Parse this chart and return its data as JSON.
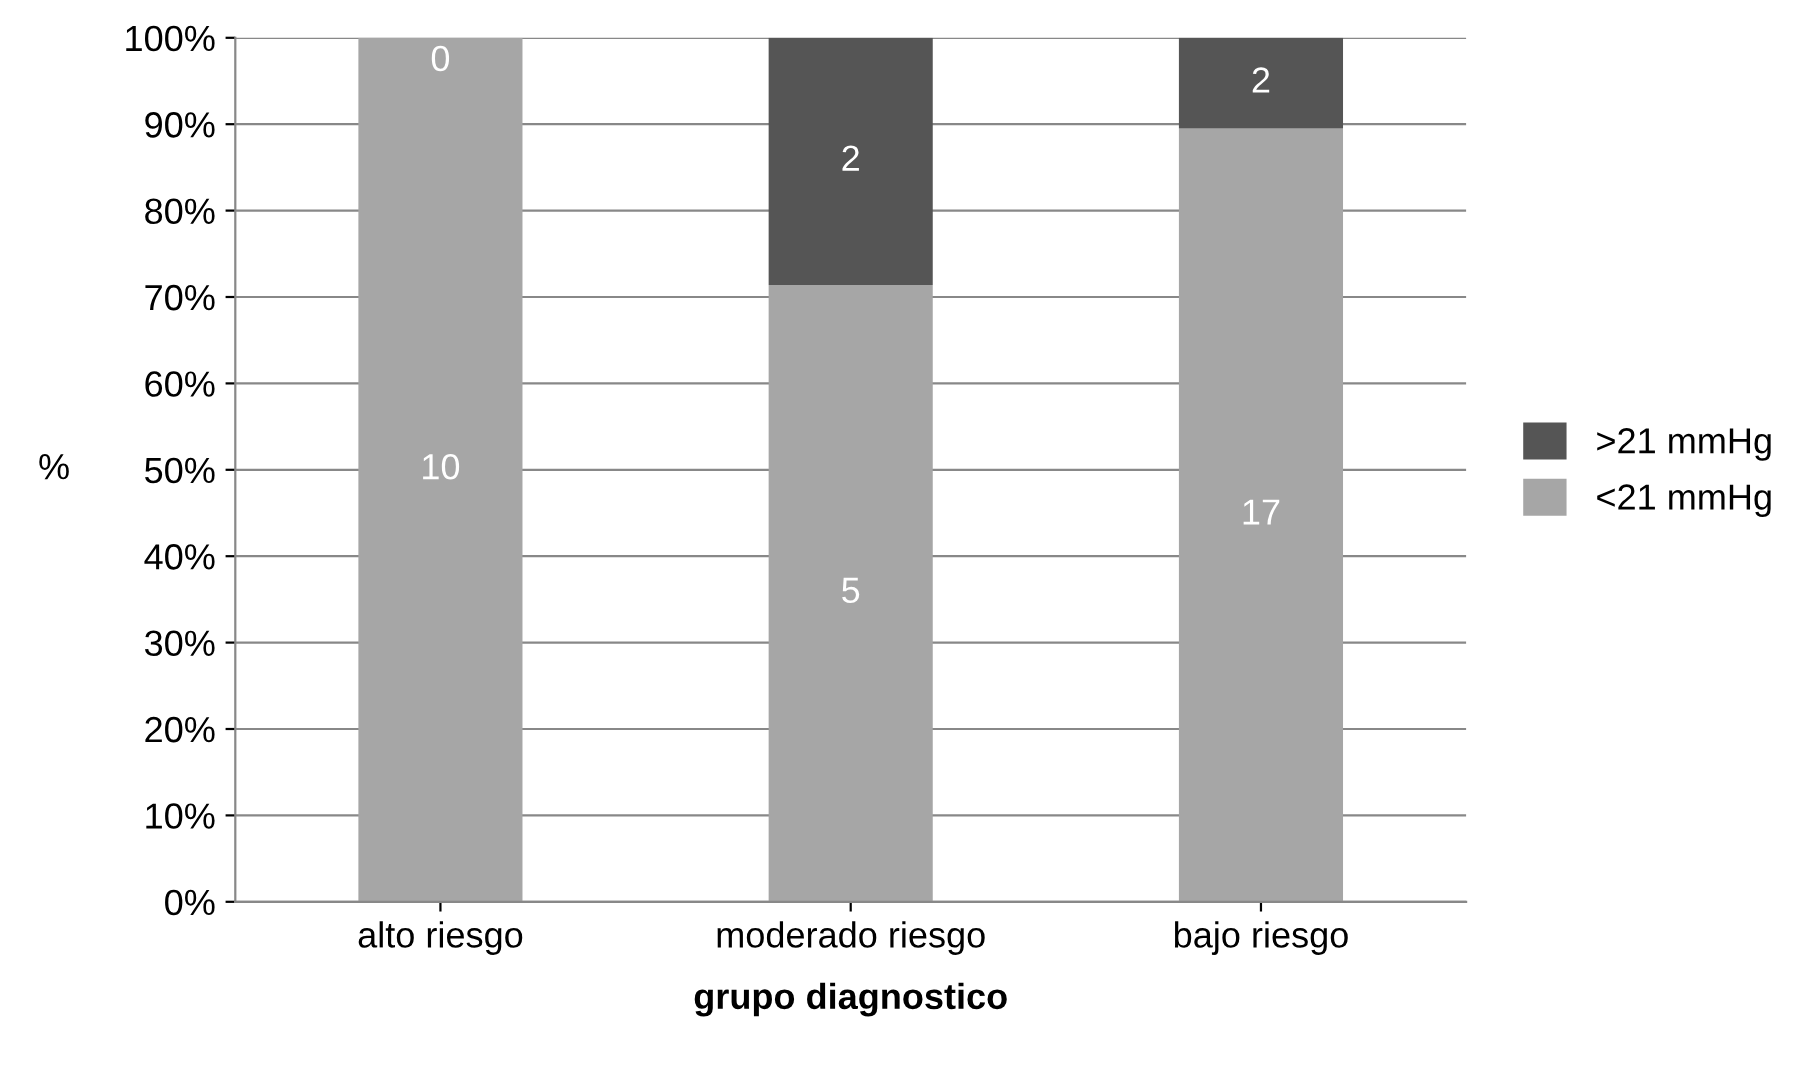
{
  "chart_data": {
    "type": "bar",
    "stacked": true,
    "xlabel": "grupo diagnostico",
    "ylabel": "%",
    "categories": [
      "alto riesgo",
      "moderado riesgo",
      "bajo riesgo"
    ],
    "series": [
      {
        "name": "<21 mmHg",
        "color": "#a6a6a6",
        "values": [
          100,
          71.4,
          89.5
        ]
      },
      {
        "name": ">21 mmHg",
        "color": "#555555",
        "values": [
          0,
          28.6,
          10.5
        ]
      }
    ],
    "annotations": [
      "10",
      "5",
      "17",
      "0",
      "2",
      "2"
    ],
    "ylim": [
      0,
      100
    ],
    "yticks": [
      {
        "value": 0,
        "label": "0%"
      },
      {
        "value": 10,
        "label": "10%"
      },
      {
        "value": 20,
        "label": "20%"
      },
      {
        "value": 30,
        "label": "30%"
      },
      {
        "value": 40,
        "label": "40%"
      },
      {
        "value": 50,
        "label": "50%"
      },
      {
        "value": 60,
        "label": "60%"
      },
      {
        "value": 70,
        "label": "70%"
      },
      {
        "value": 80,
        "label": "80%"
      },
      {
        "value": 90,
        "label": "90%"
      },
      {
        "value": 100,
        "label": "100%"
      }
    ],
    "grid": "y",
    "legend": "right"
  }
}
